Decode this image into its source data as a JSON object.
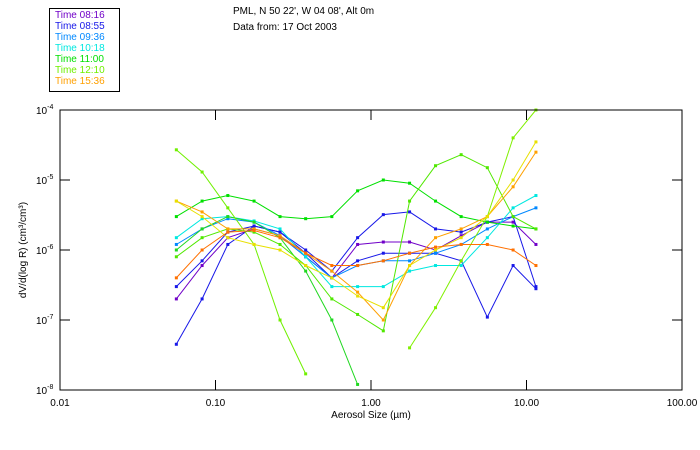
{
  "header": {
    "location": "PML, N 50 22', W 04 08', Alt 0m",
    "date": "Data from: 17 Oct 2003"
  },
  "legend": [
    {
      "label": "Time 08:16",
      "color": "#7000c8"
    },
    {
      "label": "Time 08:55",
      "color": "#1818e8"
    },
    {
      "label": "Time 09:36",
      "color": "#0088ff"
    },
    {
      "label": "Time 10:18",
      "color": "#00e8e0"
    },
    {
      "label": "Time 11:00",
      "color": "#00e000"
    },
    {
      "label": "Time 12:10",
      "color": "#70f000"
    },
    {
      "label": "Time 15:36",
      "color": "#ffa000"
    }
  ],
  "chart_data": {
    "type": "line",
    "xscale": "log",
    "yscale": "log",
    "xlabel": "Aerosol Size (µm)",
    "ylabel": "dV/d(log R) (cm³/cm³)",
    "xlim": [
      0.01,
      100
    ],
    "ylim": [
      1e-08,
      0.0001
    ],
    "xticks": [
      "0.01",
      "0.10",
      "1.00",
      "10.00",
      "100.00"
    ],
    "xtick_values": [
      0.01,
      0.1,
      1,
      10,
      100
    ],
    "yticks": [
      {
        "base": "10",
        "exp": "-4",
        "value": 0.0001
      },
      {
        "base": "10",
        "exp": "-5",
        "value": 1e-05
      },
      {
        "base": "10",
        "exp": "-6",
        "value": 1e-06
      },
      {
        "base": "10",
        "exp": "-7",
        "value": 1e-07
      },
      {
        "base": "10",
        "exp": "-8",
        "value": 1e-08
      }
    ],
    "x": [
      0.056,
      0.082,
      0.12,
      0.177,
      0.26,
      0.38,
      0.56,
      0.82,
      1.2,
      1.77,
      2.6,
      3.8,
      5.6,
      8.2,
      11.5
    ],
    "series": [
      {
        "name": "Time 08:16",
        "color": "#7000c8",
        "values": [
          2e-07,
          6e-07,
          1.5e-06,
          2e-06,
          1.6e-06,
          8e-07,
          4e-07,
          1.2e-06,
          1.3e-06,
          1.3e-06,
          1e-06,
          1.6e-06,
          2.5e-06,
          2.5e-06,
          1.2e-06
        ]
      },
      {
        "name": "Time 08:55",
        "color": "#1818e8",
        "values": [
          4.5e-08,
          2e-07,
          1.2e-06,
          2.2e-06,
          1.8e-06,
          1e-06,
          5e-07,
          1.5e-06,
          3.2e-06,
          3.5e-06,
          2e-06,
          1.8e-06,
          2.5e-06,
          3e-06,
          3e-07
        ]
      },
      {
        "name": "Time 08:55b",
        "color": "#1818e8",
        "values": [
          3e-07,
          7e-07,
          1.8e-06,
          2.2e-06,
          1.8e-06,
          9e-07,
          4e-07,
          7e-07,
          9e-07,
          9e-07,
          9e-07,
          7e-07,
          1.1e-07,
          6e-07,
          2.8e-07
        ]
      },
      {
        "name": "Time 09:36",
        "color": "#0088ff",
        "values": [
          1.2e-06,
          2e-06,
          2.8e-06,
          2.5e-06,
          1.6e-06,
          8e-07,
          4e-07,
          6e-07,
          7e-07,
          7e-07,
          9e-07,
          1.2e-06,
          2e-06,
          3e-06,
          4e-06
        ]
      },
      {
        "name": "Time 10:18",
        "color": "#00e8e0",
        "values": [
          1.5e-06,
          2.8e-06,
          3e-06,
          2.6e-06,
          2e-06,
          8e-07,
          3e-07,
          3e-07,
          3e-07,
          5e-07,
          6e-07,
          6e-07,
          1.5e-06,
          4e-06,
          6e-06
        ]
      },
      {
        "name": "Time 11:00",
        "color": "#00e000",
        "values": [
          3e-06,
          5e-06,
          6e-06,
          5e-06,
          3e-06,
          2.8e-06,
          3e-06,
          7e-06,
          1e-05,
          9e-06,
          5e-06,
          3e-06,
          2.5e-06,
          2.2e-06,
          2e-06
        ]
      },
      {
        "name": "Time 11:00b",
        "color": "#20d820",
        "values": [
          1e-06,
          2e-06,
          3e-06,
          2.5e-06,
          1.5e-06,
          5e-07,
          1e-07,
          1.2e-08,
          null,
          null,
          null,
          null,
          null,
          null,
          null
        ]
      },
      {
        "name": "Time 12:10",
        "color": "#70f000",
        "values": [
          2.7e-05,
          1.3e-05,
          4e-06,
          1.2e-06,
          1e-07,
          1.7e-08,
          null,
          null,
          null,
          null,
          null,
          null,
          null,
          null,
          null
        ]
      },
      {
        "name": "Time 12:10b",
        "color": "#50e800",
        "values": [
          8e-07,
          1.5e-06,
          2e-06,
          1.8e-06,
          1.2e-06,
          6e-07,
          2e-07,
          1.2e-07,
          7e-08,
          5e-06,
          1.6e-05,
          2.3e-05,
          1.5e-05,
          3e-06,
          2e-06
        ]
      },
      {
        "name": "Time 12:10c",
        "color": "#80f000",
        "values": [
          null,
          null,
          null,
          null,
          null,
          null,
          null,
          null,
          null,
          4e-08,
          1.5e-07,
          7e-07,
          3e-06,
          4e-05,
          0.0001
        ]
      },
      {
        "name": "Time 15:36",
        "color": "#ffa000",
        "values": [
          5e-06,
          3.5e-06,
          2e-06,
          2e-06,
          1.6e-06,
          9e-07,
          5e-07,
          2.5e-07,
          1e-07,
          6e-07,
          1.5e-06,
          2e-06,
          3e-06,
          8e-06,
          2.5e-05
        ]
      },
      {
        "name": "Time 15:36b",
        "color": "#e8e000",
        "values": [
          5e-06,
          3e-06,
          1.5e-06,
          1.2e-06,
          1e-06,
          6e-07,
          4e-07,
          2.2e-07,
          1.5e-07,
          6e-07,
          1e-06,
          1.5e-06,
          3e-06,
          1e-05,
          3.5e-05
        ]
      },
      {
        "name": "Time 15:36c",
        "color": "#ff7000",
        "values": [
          4e-07,
          1e-06,
          1.8e-06,
          1.9e-06,
          1.5e-06,
          9e-07,
          6e-07,
          6e-07,
          7e-07,
          9e-07,
          1.1e-06,
          1.2e-06,
          1.2e-06,
          1e-06,
          6e-07
        ]
      }
    ]
  }
}
